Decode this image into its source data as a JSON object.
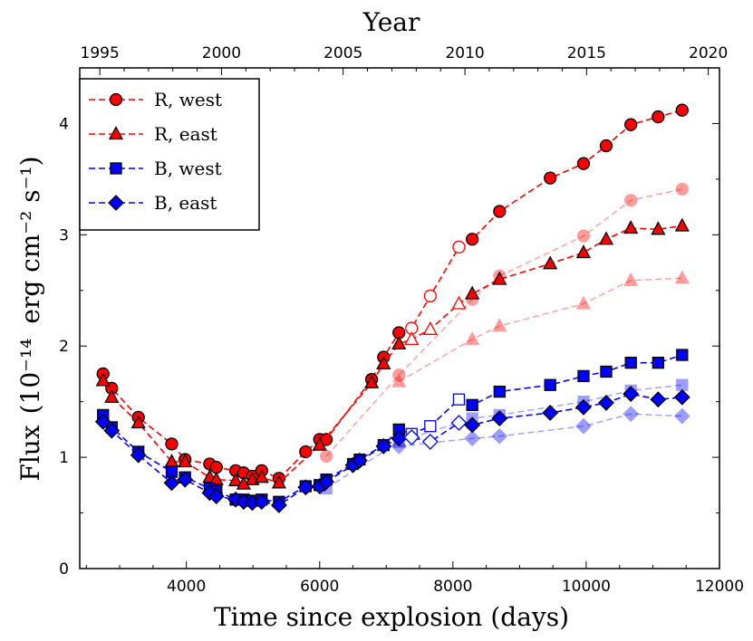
{
  "chart_data": {
    "type": "line",
    "xlabel": "Time since explosion (days)",
    "top_xlabel": "Year",
    "ylabel_main": "Flux",
    "ylabel_unit": "erg cm⁻² s⁻¹",
    "ylabel_scale": "(10⁻¹⁴",
    "ylabel_close": ")",
    "xlim": [
      2400,
      12000
    ],
    "ylim": [
      0,
      4.5
    ],
    "xticks": [
      4000,
      6000,
      8000,
      10000,
      12000
    ],
    "xtick_labels": [
      "4000",
      "6000",
      "8000",
      "10000",
      "12000"
    ],
    "yticks": [
      0,
      1,
      2,
      3,
      4
    ],
    "ytick_labels": [
      "0",
      "1",
      "2",
      "3",
      "4"
    ],
    "top_ticks_days": [
      2701,
      4527,
      6353,
      8180,
      10006,
      11832
    ],
    "top_tick_labels": [
      "1995",
      "2000",
      "2005",
      "2010",
      "2015",
      "2020"
    ],
    "legend_position": "top-left",
    "series": [
      {
        "name": "R, west",
        "color": "#ff0000",
        "marker": "circle",
        "show_in_legend": true,
        "x": [
          2750,
          2880,
          3280,
          3780,
          3980,
          4350,
          4450,
          4740,
          4860,
          4990,
          5130,
          5390,
          5790,
          6000,
          6100,
          6780,
          6960,
          7190,
          7380,
          7660,
          8090,
          8290,
          8700,
          9460,
          9960,
          10300,
          10670,
          11080,
          11440
        ],
        "y": [
          1.75,
          1.62,
          1.36,
          1.12,
          0.98,
          0.94,
          0.91,
          0.88,
          0.86,
          0.83,
          0.88,
          0.81,
          1.05,
          1.16,
          1.16,
          1.7,
          1.9,
          2.12,
          2.16,
          2.45,
          2.89,
          2.96,
          3.21,
          3.51,
          3.64,
          3.8,
          3.99,
          4.06,
          4.12
        ],
        "open": [
          false,
          false,
          false,
          false,
          false,
          false,
          false,
          false,
          false,
          false,
          false,
          false,
          false,
          false,
          false,
          false,
          false,
          false,
          true,
          true,
          true,
          false,
          false,
          false,
          false,
          false,
          false,
          false,
          false
        ]
      },
      {
        "name": "R, east",
        "color": "#ff0000",
        "marker": "triangle",
        "show_in_legend": true,
        "x": [
          2750,
          2880,
          3280,
          3780,
          3980,
          4350,
          4450,
          4740,
          4860,
          4990,
          5130,
          5390,
          6000,
          6780,
          6960,
          7190,
          7380,
          7660,
          8090,
          8290,
          8700,
          9460,
          9960,
          10300,
          10670,
          11080,
          11440
        ],
        "y": [
          1.69,
          1.54,
          1.31,
          0.96,
          0.96,
          0.82,
          0.8,
          0.79,
          0.76,
          0.8,
          0.82,
          0.77,
          1.11,
          1.67,
          1.84,
          2.02,
          2.06,
          2.15,
          2.38,
          2.47,
          2.6,
          2.74,
          2.84,
          2.96,
          3.06,
          3.05,
          3.08
        ],
        "open": [
          false,
          false,
          false,
          false,
          false,
          false,
          false,
          false,
          false,
          false,
          false,
          false,
          false,
          false,
          false,
          false,
          true,
          true,
          true,
          false,
          false,
          false,
          false,
          false,
          false,
          false,
          false
        ]
      },
      {
        "name": "B, west",
        "color": "#0000ff",
        "marker": "square",
        "show_in_legend": true,
        "x": [
          2750,
          2880,
          3280,
          3780,
          3980,
          4350,
          4450,
          4740,
          4860,
          4990,
          5130,
          5390,
          5790,
          6000,
          6100,
          6500,
          6600,
          6960,
          7190,
          7380,
          7660,
          8090,
          8290,
          8700,
          9460,
          9960,
          10300,
          10670,
          11080,
          11440
        ],
        "y": [
          1.38,
          1.27,
          1.05,
          0.87,
          0.82,
          0.72,
          0.7,
          0.62,
          0.62,
          0.61,
          0.62,
          0.6,
          0.74,
          0.75,
          0.8,
          0.94,
          0.98,
          1.11,
          1.25,
          1.21,
          1.28,
          1.52,
          1.47,
          1.59,
          1.65,
          1.73,
          1.77,
          1.85,
          1.85,
          1.92
        ],
        "open": [
          false,
          false,
          false,
          false,
          false,
          false,
          false,
          false,
          false,
          false,
          false,
          false,
          false,
          false,
          false,
          false,
          false,
          false,
          false,
          true,
          true,
          true,
          false,
          false,
          false,
          false,
          false,
          false,
          false,
          false
        ]
      },
      {
        "name": "B, east",
        "color": "#0000ff",
        "marker": "diamond",
        "show_in_legend": true,
        "x": [
          2750,
          2880,
          3280,
          3780,
          3980,
          4350,
          4450,
          4740,
          4860,
          4990,
          5130,
          5390,
          5790,
          6000,
          6100,
          6500,
          6600,
          6960,
          7190,
          7380,
          7660,
          8090,
          8290,
          8700,
          9460,
          9960,
          10300,
          10670,
          11080,
          11440
        ],
        "y": [
          1.32,
          1.24,
          1.02,
          0.77,
          0.8,
          0.68,
          0.65,
          0.62,
          0.6,
          0.59,
          0.6,
          0.57,
          0.73,
          0.74,
          0.78,
          0.93,
          0.97,
          1.1,
          1.17,
          1.18,
          1.14,
          1.31,
          1.29,
          1.35,
          1.4,
          1.45,
          1.49,
          1.57,
          1.52,
          1.54
        ],
        "open": [
          false,
          false,
          false,
          false,
          false,
          false,
          false,
          false,
          false,
          false,
          false,
          false,
          false,
          false,
          false,
          false,
          false,
          false,
          false,
          true,
          true,
          true,
          false,
          false,
          false,
          false,
          false,
          false,
          false,
          false
        ]
      },
      {
        "name": "R, west (faded)",
        "color": "#ff0000",
        "marker": "circle",
        "faded": true,
        "show_in_legend": false,
        "x": [
          6100,
          7190,
          8290,
          8700,
          9960,
          10670,
          11440
        ],
        "y": [
          1.01,
          1.74,
          2.42,
          2.63,
          2.99,
          3.31,
          3.41
        ]
      },
      {
        "name": "R, east (faded)",
        "color": "#ff0000",
        "marker": "triangle",
        "faded": true,
        "show_in_legend": false,
        "x": [
          7190,
          8290,
          8700,
          9960,
          10670,
          11440
        ],
        "y": [
          1.68,
          2.06,
          2.18,
          2.38,
          2.59,
          2.61
        ]
      },
      {
        "name": "B, west (faded)",
        "color": "#0000ff",
        "marker": "square",
        "faded": true,
        "show_in_legend": false,
        "x": [
          6100,
          7190,
          8290,
          8700,
          9960,
          10670,
          11440
        ],
        "y": [
          0.72,
          1.14,
          1.35,
          1.38,
          1.5,
          1.6,
          1.65
        ]
      },
      {
        "name": "B, east (faded)",
        "color": "#0000ff",
        "marker": "diamond",
        "faded": true,
        "show_in_legend": false,
        "x": [
          7190,
          8290,
          8700,
          9960,
          10670,
          11440
        ],
        "y": [
          1.1,
          1.17,
          1.19,
          1.28,
          1.39,
          1.37
        ]
      }
    ]
  }
}
